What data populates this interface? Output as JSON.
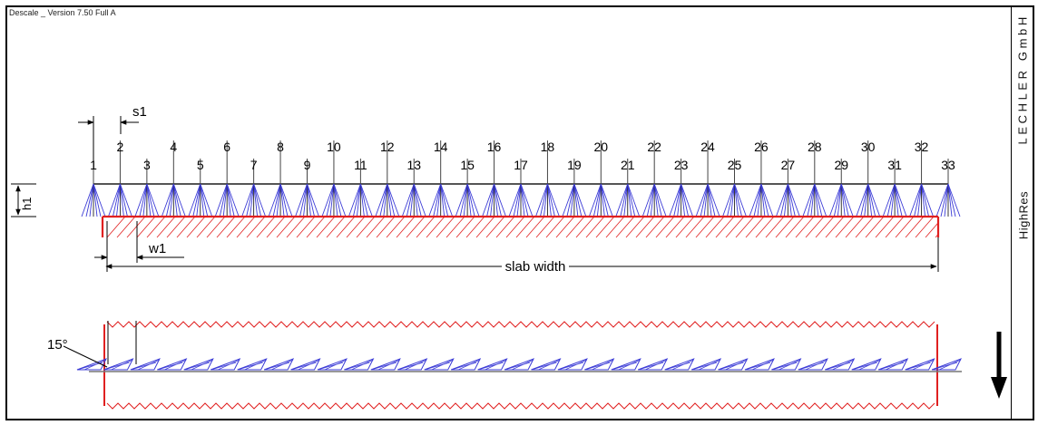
{
  "header": {
    "version": "Descale _ Version 7.50 Full A",
    "company": "LECHLER GmbH",
    "resolution": "HighRes"
  },
  "nozzles": {
    "count": 33,
    "labels": [
      "1",
      "2",
      "3",
      "4",
      "5",
      "6",
      "7",
      "8",
      "9",
      "10",
      "11",
      "12",
      "13",
      "14",
      "15",
      "16",
      "17",
      "18",
      "19",
      "20",
      "21",
      "22",
      "23",
      "24",
      "25",
      "26",
      "27",
      "28",
      "29",
      "30",
      "31",
      "32",
      "33"
    ]
  },
  "dimensions": {
    "spacing": "s1",
    "height": "h1",
    "edge": "w1",
    "slab_width": "slab width",
    "angle": "15°"
  },
  "colors": {
    "nozzle": "#3b3bd6",
    "slab": "#e02020",
    "line": "#000000"
  },
  "direction_icon": "arrow-down-icon"
}
